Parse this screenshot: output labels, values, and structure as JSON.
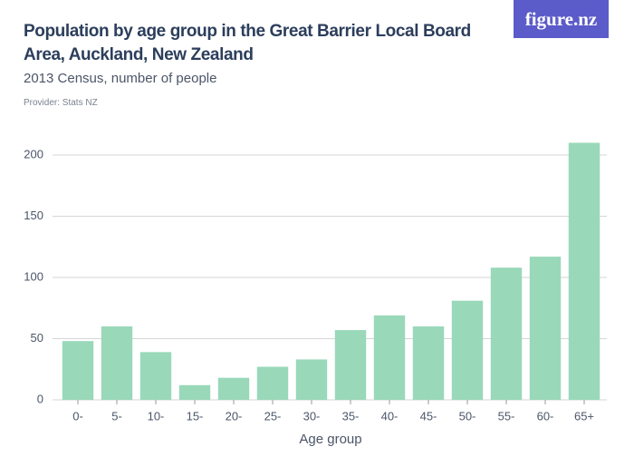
{
  "logo": "figure.nz",
  "chart_data": {
    "type": "bar",
    "title": "Population by age group in the Great Barrier Local Board Area, Auckland, New Zealand",
    "subtitle": "2013 Census, number of people",
    "provider": "Provider: Stats NZ",
    "x_label": "Age group",
    "categories": [
      "0-",
      "5-",
      "10-",
      "15-",
      "20-",
      "25-",
      "30-",
      "35-",
      "40-",
      "45-",
      "50-",
      "55-",
      "60-",
      "65+"
    ],
    "values": [
      48,
      60,
      39,
      12,
      18,
      27,
      33,
      57,
      69,
      60,
      81,
      108,
      117,
      210
    ],
    "color": "#99d8b9",
    "ylim": [
      0,
      210
    ],
    "yticks": [
      0,
      50,
      100,
      150,
      200
    ],
    "grid": true
  }
}
